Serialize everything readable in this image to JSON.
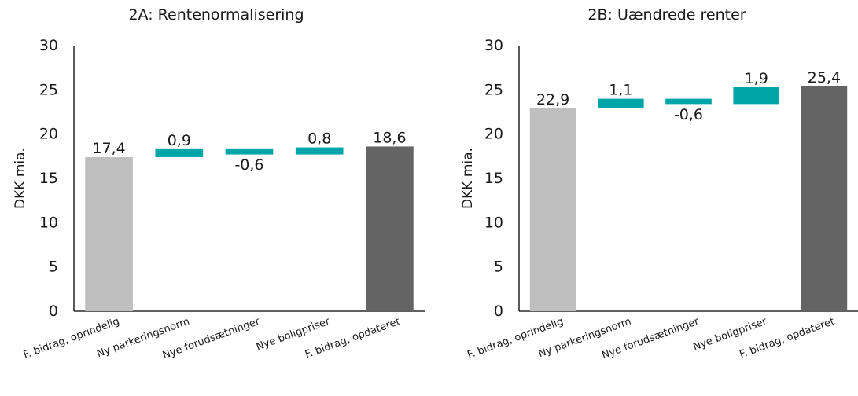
{
  "colors": {
    "start": "#bfbfbf",
    "delta": "#00a5aa",
    "end": "#646464"
  },
  "chart_data": [
    {
      "type": "waterfall",
      "title": "2A: Rentenormalisering",
      "ylabel": "DKK mia.",
      "ylim": [
        0,
        30
      ],
      "yticks": [
        0,
        5,
        10,
        15,
        20,
        25,
        30
      ],
      "categories": [
        "F. bidrag, oprindelig",
        "Ny parkeringsnorm",
        "Nye forudsætninger",
        "Nye boligpriser",
        "F. bidrag, opdateret"
      ],
      "values": [
        17.4,
        0.9,
        -0.6,
        0.8,
        18.6
      ],
      "labels": [
        "17,4",
        "0,9",
        "-0,6",
        "0,8",
        "18,6"
      ],
      "kinds": [
        "start",
        "delta",
        "delta",
        "delta",
        "end"
      ]
    },
    {
      "type": "waterfall",
      "title": "2B: Uændrede renter",
      "ylabel": "DKK mia.",
      "ylim": [
        0,
        30
      ],
      "yticks": [
        0,
        5,
        10,
        15,
        20,
        25,
        30
      ],
      "categories": [
        "F. bidrag, oprindelig",
        "Ny parkeringsnorm",
        "Nye forudsætninger",
        "Nye boligpriser",
        "F. bidrag, opdateret"
      ],
      "values": [
        22.9,
        1.1,
        -0.6,
        1.9,
        25.4
      ],
      "labels": [
        "22,9",
        "1,1",
        "-0,6",
        "1,9",
        "25,4"
      ],
      "kinds": [
        "start",
        "delta",
        "delta",
        "delta",
        "end"
      ]
    }
  ]
}
